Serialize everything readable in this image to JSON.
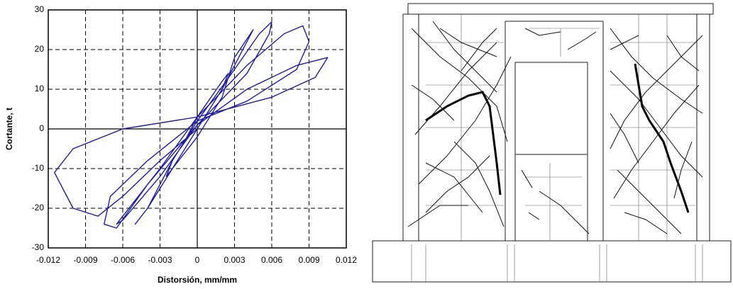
{
  "chart_data": {
    "type": "line",
    "xlabel": "Distorsión, mm/mm",
    "ylabel": "Cortante, t",
    "x": [
      0,
      0.001,
      0.002,
      0.0025,
      0.002,
      0,
      -0.001,
      -0.002,
      -0.0025,
      -0.002,
      0,
      0.002,
      0.003,
      0.0045,
      0.004,
      0.002,
      0,
      -0.002,
      -0.004,
      -0.005,
      -0.004,
      -0.002,
      0,
      0.003,
      0.005,
      0.006,
      0.0058,
      0.004,
      0,
      -0.003,
      -0.006,
      -0.0065,
      -0.006,
      -0.003,
      0,
      0.004,
      0.007,
      0.0085,
      0.009,
      0.008,
      0.004,
      0,
      -0.004,
      -0.007,
      -0.0075,
      -0.0065,
      -0.004,
      0,
      0.004,
      0.008,
      0.0105,
      0.0095,
      0.006,
      0,
      -0.006,
      -0.01,
      -0.0115,
      -0.01,
      -0.008,
      -0.006,
      -0.003,
      0
    ],
    "series": [
      {
        "color": "#1f1f9a",
        "values": [
          0,
          5,
          10,
          14,
          12,
          3,
          -3,
          -8,
          -12,
          -10,
          -2,
          8,
          18,
          25,
          22,
          10,
          0,
          -10,
          -20,
          -24,
          -20,
          -8,
          2,
          15,
          24,
          27,
          24,
          14,
          1,
          -12,
          -23,
          -24,
          -22,
          -10,
          3,
          16,
          24,
          26,
          22,
          15,
          7,
          2,
          -8,
          -17,
          -24,
          -25,
          -14,
          1,
          10,
          16,
          18,
          13,
          8,
          3,
          0,
          -5,
          -11,
          -20,
          -22,
          -17,
          -8,
          0
        ]
      }
    ],
    "xlim": [
      -0.012,
      0.012
    ],
    "xticks": [
      -0.012,
      -0.009,
      -0.006,
      -0.003,
      0,
      0.003,
      0.006,
      0.009,
      0.012
    ],
    "ylim": [
      -30,
      30
    ],
    "yticks": [
      -30,
      -20,
      -10,
      0,
      10,
      20,
      30
    ],
    "grid": true
  }
}
